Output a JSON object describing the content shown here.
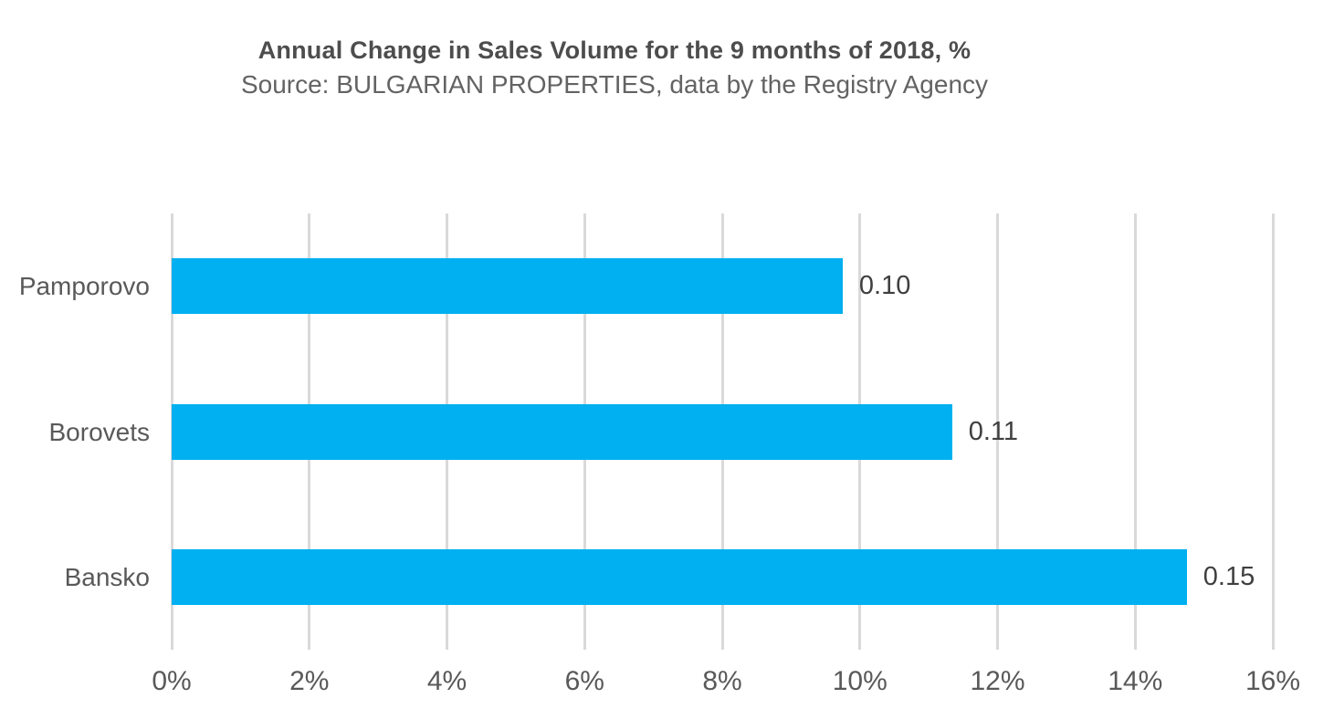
{
  "chart": {
    "title": "Annual Change in Sales Volume for the 9 months of 2018, %",
    "subtitle": "Source: BULGARIAN PROPERTIES, data by the Registry Agency"
  },
  "chart_data": {
    "type": "bar",
    "orientation": "horizontal",
    "title": "Annual Change in Sales Volume for the 9 months of 2018, %",
    "subtitle": "Source: BULGARIAN PROPERTIES, data by the Registry Agency",
    "categories": [
      "Pamporovo",
      "Borovets",
      "Bansko"
    ],
    "values": [
      0.1,
      0.11,
      0.15
    ],
    "value_labels": [
      "0.10",
      "0.11",
      "0.15"
    ],
    "bar_lengths_pct": [
      9.75,
      11.34,
      14.75
    ],
    "xlabel": "",
    "ylabel": "",
    "xlim": [
      0,
      16
    ],
    "x_tick_labels": [
      "0%",
      "2%",
      "4%",
      "6%",
      "8%",
      "10%",
      "12%",
      "14%",
      "16%"
    ],
    "x_tick_values": [
      0,
      2,
      4,
      6,
      8,
      10,
      12,
      14,
      16
    ],
    "grid": "vertical-only",
    "legend": "none",
    "bar_color": "#00b0f0",
    "gridline_color": "#d9d9d9",
    "title_color": "#4d4d4d",
    "label_color": "#595959"
  }
}
